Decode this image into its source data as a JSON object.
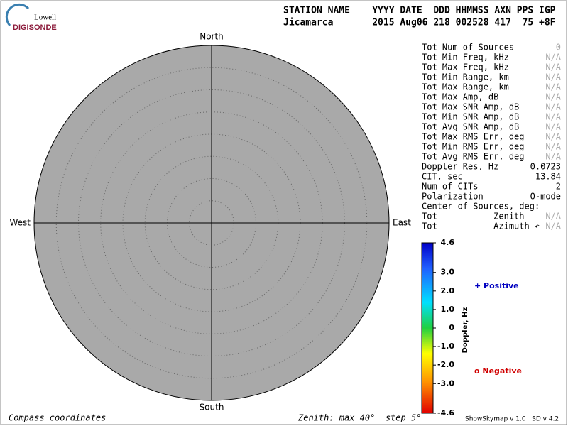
{
  "logo": {
    "top": "Lowell",
    "bottom": "DIGISONDE"
  },
  "header": {
    "labels": "STATION NAME    YYYY DATE  DDD HHMMSS AXN PPS IGP",
    "values": "Jicamarca       2015 Aug06 218 002528 417  75 +8F"
  },
  "compass": {
    "north": "North",
    "south": "South",
    "west": "West",
    "east": "East"
  },
  "stats": [
    {
      "label": "Tot Num of Sources",
      "value": "0"
    },
    {
      "label": "Tot Min Freq, kHz",
      "value": "N/A"
    },
    {
      "label": "Tot Max Freq, kHz",
      "value": "N/A"
    },
    {
      "label": "Tot Min Range, km",
      "value": "N/A"
    },
    {
      "label": "Tot Max Range, km",
      "value": "N/A"
    },
    {
      "label": "Tot Max Amp, dB",
      "value": "N/A"
    },
    {
      "label": "Tot Max SNR Amp, dB",
      "value": "N/A"
    },
    {
      "label": "Tot Min SNR Amp, dB",
      "value": "N/A"
    },
    {
      "label": "Tot Avg SNR Amp, dB",
      "value": "N/A"
    },
    {
      "label": "Tot Max RMS Err, deg",
      "value": "N/A"
    },
    {
      "label": "Tot Min RMS Err, deg",
      "value": "N/A"
    },
    {
      "label": "Tot Avg RMS Err, deg",
      "value": "N/A"
    },
    {
      "label": "Doppler Res, Hz",
      "value": "0.0723"
    },
    {
      "label": "CIT, sec",
      "value": "13.84"
    },
    {
      "label": "Num of CITs",
      "value": "2"
    },
    {
      "label": "Polarization",
      "value": "O-mode"
    },
    {
      "label": "Center of Sources, deg:"
    },
    {
      "label": "Tot           Zenith",
      "value": "N/A"
    },
    {
      "label": "Tot           Azimuth ↶",
      "value": "N/A"
    }
  ],
  "colorbar": {
    "label": "Doppler, Hz",
    "lim": [
      -4.6,
      4.6
    ],
    "ticks": [
      4.6,
      {
        "value": 3,
        "label": "3.0"
      },
      {
        "value": 2,
        "label": "2.0"
      },
      {
        "value": 1,
        "label": "1.0"
      },
      0,
      {
        "value": -1,
        "label": "-1.0"
      },
      {
        "value": -2,
        "label": "-2.0"
      },
      {
        "value": -3,
        "label": "-3.0"
      },
      -4.6
    ]
  },
  "legend": {
    "positive": "+ Positive",
    "negative": "o Negative"
  },
  "footer": {
    "left": "Compass coordinates",
    "middle": "Zenith: max 40°  step 5°",
    "right": "ShowSkymap v 1.0   SD v 4.2"
  }
}
